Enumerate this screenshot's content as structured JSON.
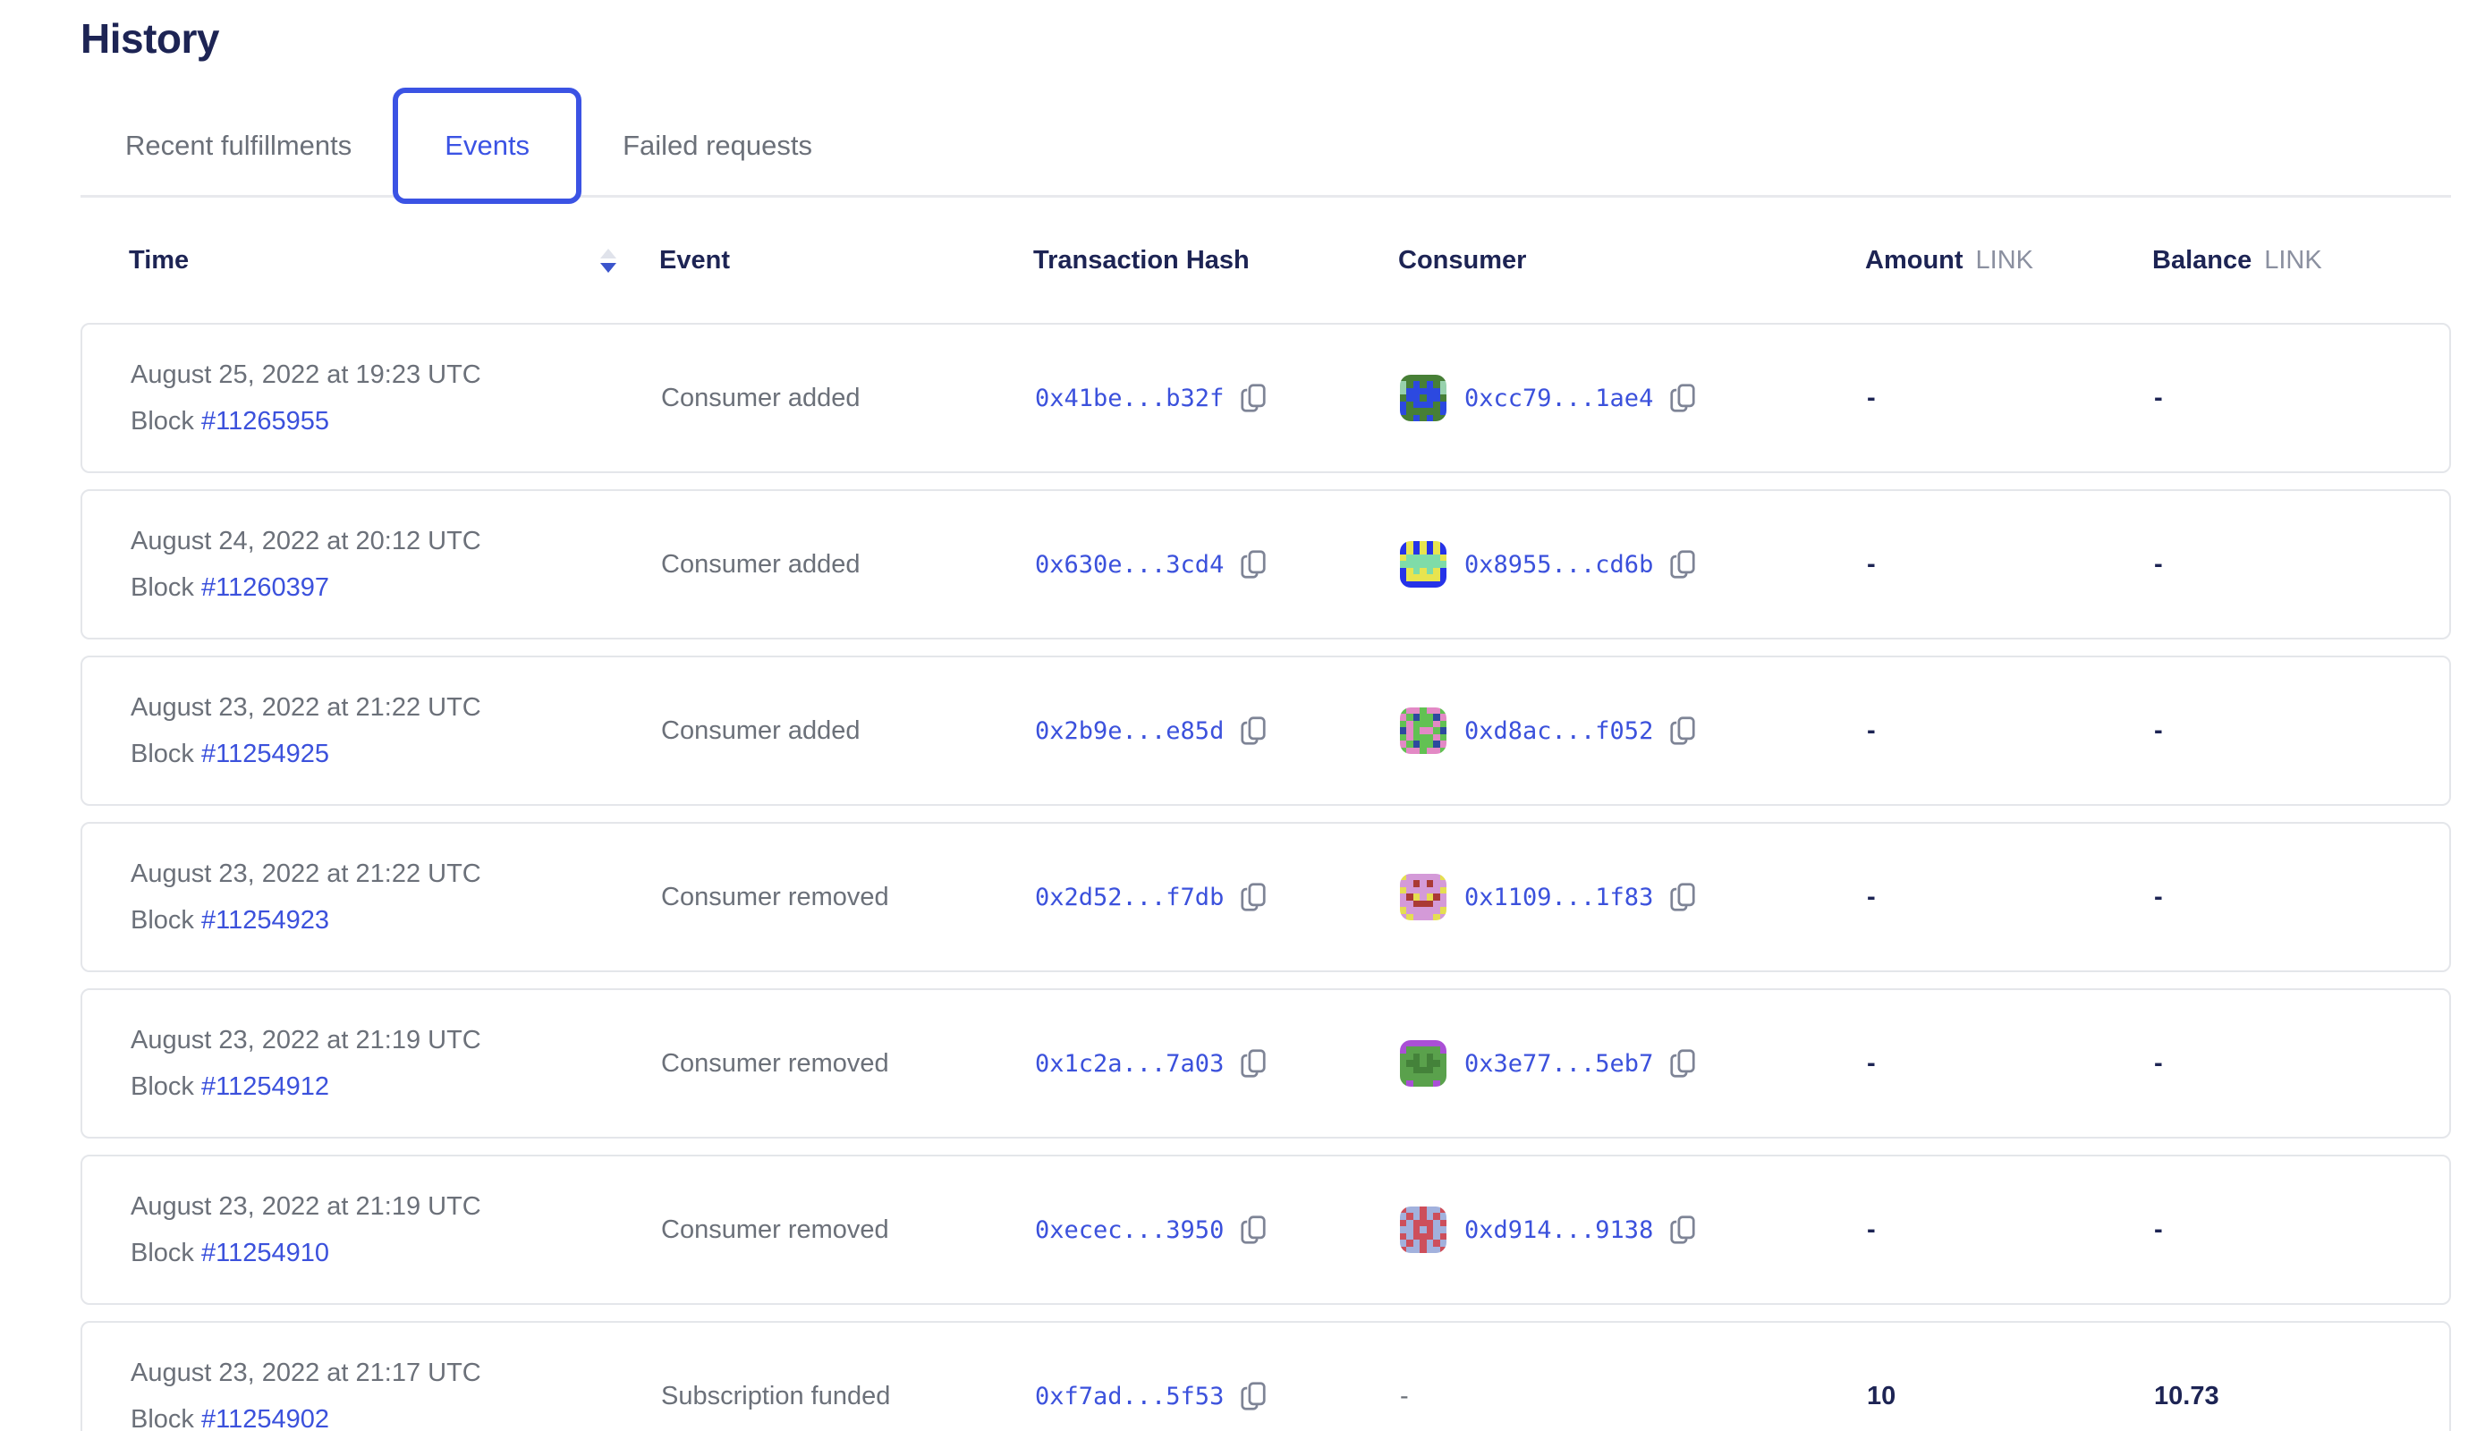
{
  "page": {
    "title": "History"
  },
  "colors": {
    "accent": "#3b53e4",
    "link": "#3b51dc",
    "heading": "#1d2454",
    "muted": "#6b7079"
  },
  "tabs": [
    {
      "label": "Recent fulfillments",
      "active": false
    },
    {
      "label": "Events",
      "active": true
    },
    {
      "label": "Failed requests",
      "active": false
    }
  ],
  "table": {
    "block_label": "Block",
    "sort": {
      "column": "Time",
      "direction": "descending"
    },
    "columns": {
      "time": "Time",
      "event": "Event",
      "tx": "Transaction Hash",
      "consumer": "Consumer",
      "amount": "Amount",
      "amount_unit": "LINK",
      "balance": "Balance",
      "balance_unit": "LINK"
    },
    "rows": [
      {
        "date": "August 25, 2022 at 19:23 UTC",
        "block": "#11265955",
        "event": "Consumer added",
        "tx": "0x41be...b32f",
        "consumer": "0xcc79...1ae4",
        "amount": "-",
        "balance": "-",
        "avatar": {
          "palette": {
            "g": "#477f36",
            "b": "#2c49e0",
            "t": "#97d1ad"
          },
          "grid": [
            "ggggggg",
            "tgbgbgt",
            "tbbbbbt",
            "gbbgbbg",
            "bgbbbgb",
            "bgggggb",
            "ggbgbgg"
          ]
        }
      },
      {
        "date": "August 24, 2022 at 20:12 UTC",
        "block": "#11260397",
        "event": "Consumer added",
        "tx": "0x630e...3cd4",
        "consumer": "0x8955...cd6b",
        "amount": "-",
        "balance": "-",
        "avatar": {
          "palette": {
            "b": "#2633e8",
            "y": "#e8e44f",
            "t": "#7fdca8"
          },
          "grid": [
            "bybybyb",
            "bybybyb",
            "ytgtgty",
            "ttttttt",
            "bytytyb",
            "byyyyyb",
            "bbbbbbb"
          ],
          "palette_extra_note": "g maps below",
          "palette_g": "#7fdca8"
        }
      },
      {
        "date": "August 23, 2022 at 21:22 UTC",
        "block": "#11254925",
        "event": "Consumer added",
        "tx": "0x2b9e...e85d",
        "consumer": "0xd8ac...f052",
        "amount": "-",
        "balance": "-",
        "avatar": {
          "palette": {
            "g": "#62c153",
            "p": "#e389c5",
            "n": "#2c4a9e"
          },
          "grid": [
            "gppgppg",
            "pgnggnp",
            "gpgggpg",
            "npgppgn",
            "gpgggpg",
            "pgnggnp",
            "gppgppg"
          ]
        }
      },
      {
        "date": "August 23, 2022 at 21:22 UTC",
        "block": "#11254923",
        "event": "Consumer removed",
        "tx": "0x2d52...f7db",
        "consumer": "0x1109...1f83",
        "amount": "-",
        "balance": "-",
        "avatar": {
          "palette": {
            "v": "#d49ad8",
            "y": "#e5de51",
            "r": "#aa3a35"
          },
          "grid": [
            "yvvvvvy",
            "vvrvrvv",
            "yvvvvvy",
            "vryvyrv",
            "vvrrrvv",
            "yvvvvvy",
            "vyvvvyv"
          ]
        }
      },
      {
        "date": "August 23, 2022 at 21:19 UTC",
        "block": "#11254912",
        "event": "Consumer removed",
        "tx": "0x1c2a...7a03",
        "consumer": "0x3e77...5eb7",
        "amount": "-",
        "balance": "-",
        "avatar": {
          "palette": {
            "g": "#5aa14c",
            "p": "#aa4fd6",
            "d": "#44823a"
          },
          "grid": [
            "ppppppp",
            "pgggggp",
            "ggdgdgg",
            "gddgddg",
            "ggdddgg",
            "ggggggg",
            "gpgggpg"
          ]
        }
      },
      {
        "date": "August 23, 2022 at 21:19 UTC",
        "block": "#11254910",
        "event": "Consumer removed",
        "tx": "0xecec...3950",
        "consumer": "0xd914...9138",
        "amount": "-",
        "balance": "-",
        "avatar": {
          "palette": {
            "r": "#cd4f5b",
            "l": "#a2b1dd"
          },
          "grid": [
            "rllrllr",
            "lrlrlrl",
            "rlrrrlr",
            "llrlrll",
            "rlrrrlr",
            "lrlrlrl",
            "rllrllr"
          ]
        }
      },
      {
        "date": "August 23, 2022 at 21:17 UTC",
        "block": "#11254902",
        "event": "Subscription funded",
        "tx": "0xf7ad...5f53",
        "consumer": null,
        "consumer_dash": "-",
        "amount": "10",
        "balance": "10.73",
        "avatar": null
      }
    ]
  }
}
